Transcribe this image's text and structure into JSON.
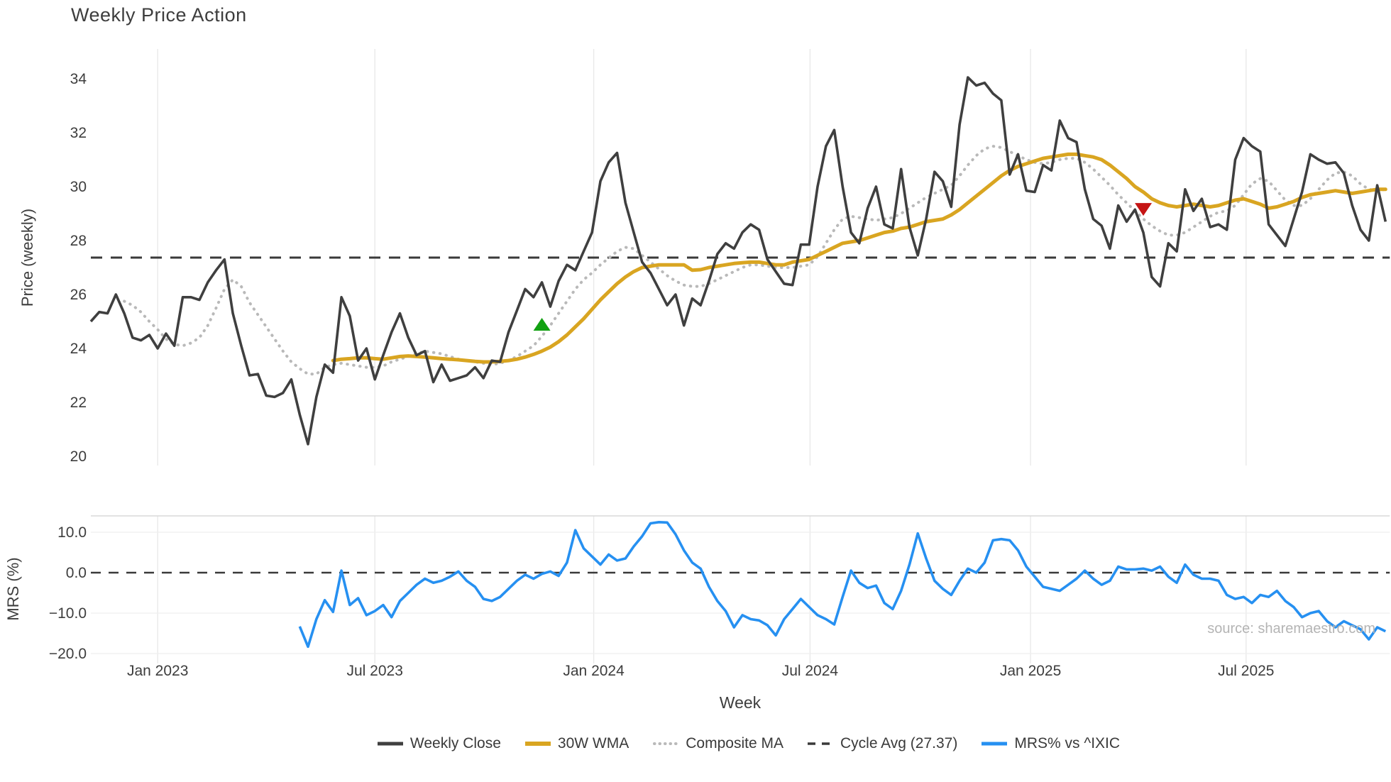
{
  "page": {
    "title": "Weekly Price Action",
    "watermark": "source: sharemaestro.com"
  },
  "colors": {
    "close": "#3f3f3f",
    "wma": "#d9a521",
    "composite": "#b9b9b9",
    "cycle_avg": "#3a3a3a",
    "mrs": "#2690f1",
    "buy_marker": "#12a112",
    "sell_marker": "#c51414",
    "grid": "#e8e8e8",
    "panel_line": "#d8d8d8",
    "text": "#3d3d3d",
    "watermark": "#b4b4b4"
  },
  "legend": [
    {
      "label": "Weekly Close",
      "style": "solid-dark"
    },
    {
      "label": "30W WMA",
      "style": "solid-gold"
    },
    {
      "label": "Composite MA",
      "style": "dotted-gray"
    },
    {
      "label": "Cycle Avg (27.37)",
      "style": "dashed-dark"
    },
    {
      "label": "MRS% vs ^IXIC",
      "style": "solid-blue"
    }
  ],
  "chart_data": {
    "type": "line",
    "title": "Weekly Price Action",
    "x_axis": {
      "label": "Week",
      "ticks": [
        {
          "label": "Jan 2023",
          "week": 8
        },
        {
          "label": "Jul 2023",
          "week": 34
        },
        {
          "label": "Jan 2024",
          "week": 60.2
        },
        {
          "label": "Jul 2024",
          "week": 86.1
        },
        {
          "label": "Jan 2025",
          "week": 112.5
        },
        {
          "label": "Jul 2025",
          "week": 138.3
        }
      ]
    },
    "price_panel": {
      "ylabel": "Price (weekly)",
      "ticks": [
        34,
        32,
        30,
        28,
        26,
        24,
        22,
        20
      ],
      "ylim": [
        19.66,
        35.11
      ],
      "cycle_avg": 27.37,
      "series": [
        {
          "name": "Weekly Close",
          "style": "solid",
          "start_week": 0,
          "values": [
            25.0,
            25.35,
            25.3,
            26.0,
            25.3,
            24.4,
            24.3,
            24.5,
            24.0,
            24.55,
            24.1,
            25.9,
            25.9,
            25.8,
            26.45,
            26.9,
            27.3,
            25.3,
            24.1,
            23.0,
            23.05,
            22.25,
            22.2,
            22.35,
            22.85,
            21.55,
            20.45,
            22.2,
            23.4,
            23.1,
            25.9,
            25.2,
            23.55,
            24.0,
            22.85,
            23.75,
            24.6,
            25.3,
            24.4,
            23.75,
            23.9,
            22.75,
            23.4,
            22.8,
            22.9,
            23.0,
            23.3,
            22.9,
            23.55,
            23.5,
            24.6,
            25.4,
            26.2,
            25.9,
            26.45,
            25.55,
            26.5,
            27.1,
            26.9,
            27.6,
            28.3,
            30.2,
            30.9,
            31.25,
            29.4,
            28.3,
            27.2,
            26.8,
            26.2,
            25.6,
            26.0,
            24.85,
            25.85,
            25.6,
            26.5,
            27.5,
            27.9,
            27.7,
            28.3,
            28.6,
            28.4,
            27.3,
            26.85,
            26.4,
            26.35,
            27.85,
            27.85,
            30.0,
            31.5,
            32.1,
            30.0,
            28.3,
            27.9,
            29.2,
            30.0,
            28.6,
            28.45,
            30.65,
            28.5,
            27.45,
            28.8,
            30.55,
            30.2,
            29.25,
            32.3,
            34.05,
            33.75,
            33.85,
            33.45,
            33.2,
            30.45,
            31.2,
            29.85,
            29.8,
            30.8,
            30.6,
            32.45,
            31.8,
            31.65,
            29.9,
            28.8,
            28.55,
            27.7,
            29.3,
            28.7,
            29.15,
            28.3,
            26.65,
            26.3,
            27.9,
            27.6,
            29.9,
            29.1,
            29.55,
            28.5,
            28.6,
            28.4,
            31.0,
            31.8,
            31.5,
            31.3,
            28.6,
            28.2,
            27.8,
            28.8,
            29.8,
            31.2,
            31.0,
            30.85,
            30.9,
            30.5,
            29.3,
            28.4,
            28.0,
            30.05,
            28.7
          ]
        },
        {
          "name": "30W WMA",
          "style": "solid",
          "start_week": 29,
          "values": [
            23.55,
            23.6,
            23.62,
            23.65,
            23.65,
            23.62,
            23.6,
            23.65,
            23.7,
            23.72,
            23.7,
            23.68,
            23.65,
            23.62,
            23.6,
            23.58,
            23.55,
            23.52,
            23.5,
            23.5,
            23.52,
            23.55,
            23.6,
            23.68,
            23.78,
            23.9,
            24.05,
            24.25,
            24.5,
            24.8,
            25.1,
            25.45,
            25.8,
            26.1,
            26.4,
            26.65,
            26.85,
            27.0,
            27.05,
            27.1,
            27.1,
            27.1,
            27.1,
            26.9,
            26.92,
            27.0,
            27.05,
            27.1,
            27.15,
            27.18,
            27.2,
            27.2,
            27.15,
            27.1,
            27.1,
            27.2,
            27.25,
            27.3,
            27.45,
            27.6,
            27.75,
            27.9,
            27.95,
            28.0,
            28.1,
            28.2,
            28.3,
            28.35,
            28.45,
            28.5,
            28.6,
            28.7,
            28.75,
            28.8,
            28.95,
            29.15,
            29.4,
            29.65,
            29.9,
            30.15,
            30.4,
            30.6,
            30.75,
            30.85,
            30.95,
            31.05,
            31.1,
            31.15,
            31.2,
            31.2,
            31.15,
            31.1,
            31.0,
            30.8,
            30.55,
            30.3,
            30.0,
            29.8,
            29.55,
            29.4,
            29.3,
            29.25,
            29.3,
            29.35,
            29.3,
            29.25,
            29.3,
            29.4,
            29.5,
            29.55,
            29.45,
            29.35,
            29.2,
            29.25,
            29.35,
            29.45,
            29.6,
            29.7,
            29.75,
            29.8,
            29.85,
            29.8,
            29.75,
            29.8,
            29.85,
            29.9,
            29.9
          ]
        },
        {
          "name": "Composite MA",
          "style": "dotted",
          "start_week": 4,
          "values": [
            25.75,
            25.6,
            25.35,
            25.0,
            24.7,
            24.35,
            24.15,
            24.1,
            24.2,
            24.4,
            24.85,
            25.5,
            26.2,
            26.55,
            26.3,
            25.7,
            25.25,
            24.8,
            24.35,
            23.9,
            23.5,
            23.25,
            23.05,
            23.05,
            23.3,
            23.4,
            23.45,
            23.4,
            23.35,
            23.3,
            23.3,
            23.35,
            23.5,
            23.6,
            23.7,
            23.8,
            23.9,
            23.85,
            23.8,
            23.7,
            23.6,
            23.55,
            23.5,
            23.45,
            23.4,
            23.45,
            23.55,
            23.7,
            23.9,
            24.1,
            24.45,
            24.85,
            25.3,
            25.75,
            26.2,
            26.55,
            26.8,
            27.1,
            27.35,
            27.6,
            27.75,
            27.7,
            27.45,
            27.2,
            26.95,
            26.7,
            26.5,
            26.35,
            26.3,
            26.3,
            26.4,
            26.55,
            26.7,
            26.85,
            27.0,
            27.1,
            27.1,
            27.05,
            27.0,
            27.0,
            27.0,
            27.05,
            27.1,
            27.4,
            27.9,
            28.4,
            28.8,
            28.9,
            28.85,
            28.8,
            28.75,
            28.8,
            28.85,
            29.0,
            29.2,
            29.4,
            29.6,
            29.75,
            29.9,
            30.05,
            30.4,
            30.8,
            31.15,
            31.4,
            31.5,
            31.45,
            31.3,
            31.15,
            31.0,
            30.9,
            30.85,
            30.9,
            31.0,
            31.05,
            31.05,
            30.9,
            30.65,
            30.35,
            30.05,
            29.7,
            29.4,
            29.1,
            28.8,
            28.55,
            28.35,
            28.2,
            28.2,
            28.3,
            28.5,
            28.7,
            28.9,
            29.05,
            29.1,
            29.3,
            29.7,
            30.1,
            30.3,
            30.2,
            29.85,
            29.5,
            29.3,
            29.3,
            29.55,
            29.9,
            30.25,
            30.5,
            30.55,
            30.4,
            30.1,
            29.9,
            29.85,
            29.9
          ]
        },
        {
          "name": "Cycle Avg (27.37)",
          "style": "dashed",
          "value": 27.37
        }
      ],
      "markers": [
        {
          "shape": "triangle-up",
          "signal": "buy",
          "week": 54,
          "price": 24.87
        },
        {
          "shape": "triangle-down",
          "signal": "sell",
          "week": 126,
          "price": 29.18
        }
      ]
    },
    "mrs_panel": {
      "ylabel": "MRS (%)",
      "ticks": [
        {
          "label": "10.0",
          "value": 10
        },
        {
          "label": "0.0",
          "value": 0
        },
        {
          "label": "−10.0",
          "value": -10
        },
        {
          "label": "−20.0",
          "value": -20
        }
      ],
      "ylim": [
        -22.5,
        14.0
      ],
      "zero_line": 0,
      "series": [
        {
          "name": "MRS% vs ^IXIC",
          "style": "solid",
          "start_week": 25,
          "values": [
            -13.3,
            -18.3,
            -11.5,
            -6.8,
            -9.7,
            0.5,
            -8.0,
            -6.3,
            -10.5,
            -9.5,
            -8.0,
            -11.0,
            -7.0,
            -5.0,
            -3.0,
            -1.5,
            -2.5,
            -2.0,
            -1.0,
            0.3,
            -2.0,
            -3.5,
            -6.5,
            -7.0,
            -6.0,
            -4.0,
            -2.0,
            -0.5,
            -1.5,
            -0.3,
            0.3,
            -0.8,
            2.5,
            10.5,
            6.0,
            4.0,
            2.0,
            4.5,
            3.0,
            3.5,
            6.5,
            9.0,
            12.2,
            12.5,
            12.4,
            9.5,
            5.5,
            2.5,
            1.0,
            -3.5,
            -7.0,
            -9.5,
            -13.5,
            -10.5,
            -11.5,
            -11.8,
            -13.0,
            -15.5,
            -11.5,
            -9.0,
            -6.5,
            -8.5,
            -10.5,
            -11.5,
            -12.8,
            -6.0,
            0.5,
            -2.5,
            -3.8,
            -3.2,
            -7.5,
            -9.0,
            -4.5,
            2.0,
            9.7,
            3.5,
            -2.0,
            -4.0,
            -5.5,
            -2.0,
            1.0,
            0.0,
            2.5,
            8.0,
            8.3,
            8.0,
            5.5,
            1.5,
            -1.0,
            -3.5,
            -4.0,
            -4.5,
            -3.0,
            -1.5,
            0.5,
            -1.5,
            -3.0,
            -2.0,
            1.5,
            0.8,
            0.8,
            1.0,
            0.5,
            1.5,
            -1.0,
            -2.5,
            2.0,
            -0.5,
            -1.5,
            -1.5,
            -2.0,
            -5.5,
            -6.5,
            -6.0,
            -7.5,
            -5.5,
            -6.0,
            -4.5,
            -7.0,
            -8.5,
            -11.0,
            -10.0,
            -9.5,
            -12.0,
            -13.5,
            -12.0,
            -13.0,
            -14.0,
            -16.5,
            -13.5,
            -14.5
          ]
        }
      ]
    }
  }
}
